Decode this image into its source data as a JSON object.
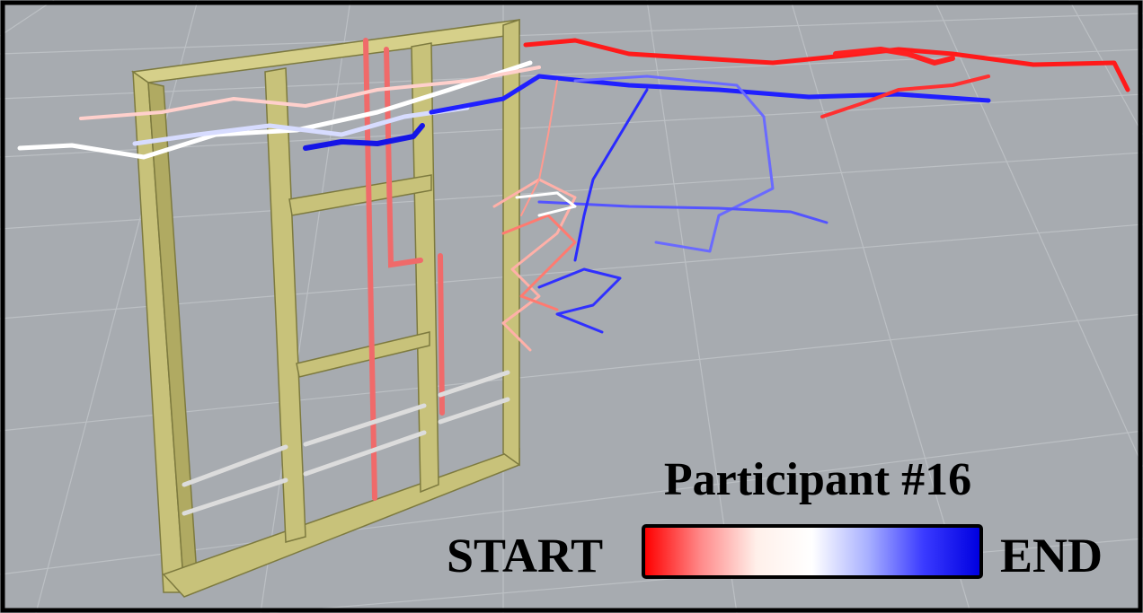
{
  "legend": {
    "title": "Participant #16",
    "start_label": "START",
    "end_label": "END",
    "gradient_colors": [
      "#ff0000",
      "#ff8a8a",
      "#fff0ea",
      "#ffffff",
      "#a8b0ff",
      "#3a3aff",
      "#0000e0"
    ]
  },
  "colors": {
    "ground": "#a7abb0",
    "grid": "#b9bdc1",
    "frame": "#c8c27a",
    "frame_dark": "#9a9550",
    "pipe_red": "#f06060",
    "rail": "#d8d8d8",
    "border": "#000000"
  }
}
